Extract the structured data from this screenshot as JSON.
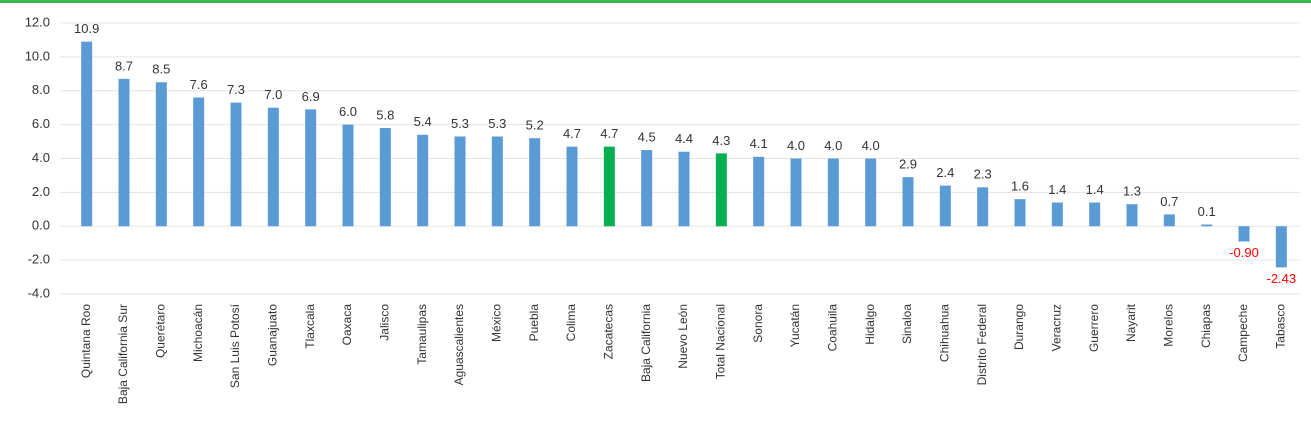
{
  "chart_data": {
    "type": "bar",
    "categories": [
      "Quintana Roo",
      "Baja California Sur",
      "Querétaro",
      "Michoacán",
      "San Luis Potosí",
      "Guanajuato",
      "Tlaxcala",
      "Oaxaca",
      "Jalisco",
      "Tamaulipas",
      "Aguascalientes",
      "México",
      "Puebla",
      "Colima",
      "Zacatecas",
      "Baja California",
      "Nuevo León",
      "Total Nacional",
      "Sonora",
      "Yucatán",
      "Coahuila",
      "Hidalgo",
      "Sinaloa",
      "Chihuahua",
      "Distrito Federal",
      "Durango",
      "Veracruz",
      "Guerrero",
      "Nayarit",
      "Morelos",
      "Chiapas",
      "Campeche",
      "Tabasco"
    ],
    "values": [
      10.9,
      8.7,
      8.5,
      7.6,
      7.3,
      7.0,
      6.9,
      6.0,
      5.8,
      5.4,
      5.3,
      5.3,
      5.2,
      4.7,
      4.7,
      4.5,
      4.4,
      4.3,
      4.1,
      4.0,
      4.0,
      4.0,
      2.9,
      2.4,
      2.3,
      1.6,
      1.4,
      1.4,
      1.3,
      0.7,
      0.1,
      -0.9,
      -2.43
    ],
    "value_labels": [
      "10.9",
      "8.7",
      "8.5",
      "7.6",
      "7.3",
      "7.0",
      "6.9",
      "6.0",
      "5.8",
      "5.4",
      "5.3",
      "5.3",
      "5.2",
      "4.7",
      "4.7",
      "4.5",
      "4.4",
      "4.3",
      "4.1",
      "4.0",
      "4.0",
      "4.0",
      "2.9",
      "2.4",
      "2.3",
      "1.6",
      "1.4",
      "1.4",
      "1.3",
      "0.7",
      "0.1",
      "-0.90",
      "-2.43"
    ],
    "colors": [
      "#5b9bd5",
      "#5b9bd5",
      "#5b9bd5",
      "#5b9bd5",
      "#5b9bd5",
      "#5b9bd5",
      "#5b9bd5",
      "#5b9bd5",
      "#5b9bd5",
      "#5b9bd5",
      "#5b9bd5",
      "#5b9bd5",
      "#5b9bd5",
      "#5b9bd5",
      "#00b050",
      "#5b9bd5",
      "#5b9bd5",
      "#00b050",
      "#5b9bd5",
      "#5b9bd5",
      "#5b9bd5",
      "#5b9bd5",
      "#5b9bd5",
      "#5b9bd5",
      "#5b9bd5",
      "#5b9bd5",
      "#5b9bd5",
      "#5b9bd5",
      "#5b9bd5",
      "#5b9bd5",
      "#5b9bd5",
      "#5b9bd5",
      "#5b9bd5"
    ],
    "negative_label_color": "#ff0000",
    "ylim": [
      -4,
      12
    ],
    "yticks": [
      {
        "value": -4,
        "label": "-4.0"
      },
      {
        "value": -2,
        "label": "-2.0"
      },
      {
        "value": 0,
        "label": "0.0"
      },
      {
        "value": 2,
        "label": "2.0"
      },
      {
        "value": 4,
        "label": "4.0"
      },
      {
        "value": 6,
        "label": "6.0"
      },
      {
        "value": 8,
        "label": "8.0"
      },
      {
        "value": 10,
        "label": "10.0"
      },
      {
        "value": 12,
        "label": "12.0"
      }
    ],
    "grid": true
  }
}
